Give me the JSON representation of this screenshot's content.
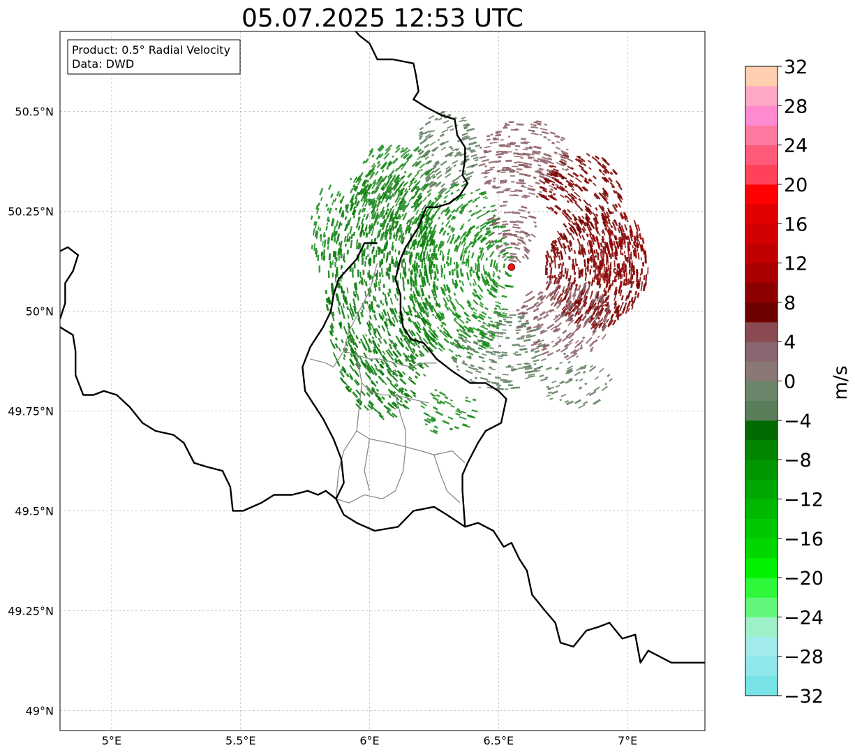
{
  "title": "05.07.2025 12:53 UTC",
  "info_box": {
    "product": "Product: 0.5° Radial Velocity",
    "data_source": "Data: DWD"
  },
  "map": {
    "lon_range": [
      4.8,
      7.3
    ],
    "lat_range": [
      48.95,
      50.7
    ],
    "lon_ticks": [
      {
        "value": 5.0,
        "label": "5°E"
      },
      {
        "value": 5.5,
        "label": "5.5°E"
      },
      {
        "value": 6.0,
        "label": "6°E"
      },
      {
        "value": 6.5,
        "label": "6.5°E"
      },
      {
        "value": 7.0,
        "label": "7°E"
      }
    ],
    "lat_ticks": [
      {
        "value": 49.0,
        "label": "49°N"
      },
      {
        "value": 49.25,
        "label": "49.25°N"
      },
      {
        "value": 49.5,
        "label": "49.5°N"
      },
      {
        "value": 49.75,
        "label": "49.75°N"
      },
      {
        "value": 50.0,
        "label": "50°N"
      },
      {
        "value": 50.25,
        "label": "50.25°N"
      },
      {
        "value": 50.5,
        "label": "50.5°N"
      }
    ],
    "gridlines": true,
    "radar_site": {
      "lon": 6.55,
      "lat": 50.11,
      "color": "#e8141a"
    },
    "borders": {
      "national": [
        [
          [
            5.92,
            50.72
          ],
          [
            5.96,
            50.69
          ],
          [
            6.0,
            50.67
          ],
          [
            6.03,
            50.63
          ],
          [
            6.09,
            50.63
          ],
          [
            6.17,
            50.62
          ],
          [
            6.18,
            50.59
          ],
          [
            6.19,
            50.55
          ],
          [
            6.17,
            50.53
          ],
          [
            6.22,
            50.51
          ],
          [
            6.28,
            50.49
          ],
          [
            6.33,
            50.48
          ],
          [
            6.34,
            50.44
          ],
          [
            6.37,
            50.41
          ],
          [
            6.37,
            50.38
          ],
          [
            6.36,
            50.34
          ],
          [
            6.38,
            50.32
          ],
          [
            6.35,
            50.29
          ],
          [
            6.31,
            50.27
          ],
          [
            6.26,
            50.26
          ],
          [
            6.22,
            50.26
          ],
          [
            6.19,
            50.21
          ],
          [
            6.16,
            50.18
          ],
          [
            6.14,
            50.16
          ],
          [
            6.12,
            50.13
          ],
          [
            6.1,
            50.08
          ],
          [
            6.12,
            50.04
          ],
          [
            6.12,
            50.0
          ],
          [
            6.13,
            49.96
          ],
          [
            6.16,
            49.93
          ],
          [
            6.21,
            49.92
          ],
          [
            6.26,
            49.88
          ],
          [
            6.32,
            49.85
          ],
          [
            6.39,
            49.82
          ],
          [
            6.45,
            49.82
          ],
          [
            6.5,
            49.8
          ],
          [
            6.53,
            49.78
          ],
          [
            6.51,
            49.72
          ],
          [
            6.45,
            49.7
          ],
          [
            6.42,
            49.67
          ],
          [
            6.38,
            49.62
          ],
          [
            6.36,
            49.59
          ],
          [
            6.36,
            49.55
          ],
          [
            6.37,
            49.46
          ]
        ],
        [
          [
            4.8,
            49.96
          ],
          [
            4.85,
            49.94
          ],
          [
            4.86,
            49.9
          ],
          [
            4.86,
            49.84
          ],
          [
            4.89,
            49.79
          ],
          [
            4.93,
            49.79
          ],
          [
            4.97,
            49.8
          ],
          [
            5.02,
            49.79
          ],
          [
            5.07,
            49.76
          ],
          [
            5.12,
            49.72
          ],
          [
            5.17,
            49.7
          ],
          [
            5.24,
            49.69
          ],
          [
            5.28,
            49.67
          ],
          [
            5.32,
            49.62
          ],
          [
            5.37,
            49.61
          ],
          [
            5.43,
            49.6
          ],
          [
            5.46,
            49.56
          ],
          [
            5.47,
            49.5
          ],
          [
            5.51,
            49.5
          ],
          [
            5.58,
            49.52
          ],
          [
            5.63,
            49.54
          ],
          [
            5.7,
            49.54
          ],
          [
            5.76,
            49.55
          ],
          [
            5.8,
            49.54
          ],
          [
            5.83,
            49.55
          ],
          [
            5.87,
            49.53
          ],
          [
            5.9,
            49.49
          ],
          [
            5.95,
            49.47
          ],
          [
            6.02,
            49.45
          ],
          [
            6.11,
            49.46
          ],
          [
            6.17,
            49.5
          ],
          [
            6.25,
            49.51
          ],
          [
            6.3,
            49.49
          ],
          [
            6.37,
            49.46
          ],
          [
            6.42,
            49.47
          ],
          [
            6.48,
            49.45
          ],
          [
            6.52,
            49.41
          ],
          [
            6.55,
            49.42
          ],
          [
            6.58,
            49.38
          ],
          [
            6.61,
            49.35
          ],
          [
            6.63,
            49.29
          ],
          [
            6.68,
            49.25
          ],
          [
            6.72,
            49.22
          ],
          [
            6.74,
            49.17
          ],
          [
            6.79,
            49.16
          ],
          [
            6.84,
            49.2
          ],
          [
            6.89,
            49.21
          ],
          [
            6.93,
            49.22
          ],
          [
            6.98,
            49.18
          ],
          [
            7.03,
            49.19
          ],
          [
            7.05,
            49.12
          ],
          [
            7.08,
            49.15
          ],
          [
            7.11,
            49.14
          ],
          [
            7.17,
            49.12
          ],
          [
            7.23,
            49.12
          ],
          [
            7.3,
            49.12
          ]
        ],
        [
          [
            4.8,
            50.15
          ],
          [
            4.83,
            50.16
          ],
          [
            4.87,
            50.14
          ],
          [
            4.85,
            50.1
          ],
          [
            4.82,
            50.07
          ],
          [
            4.82,
            50.02
          ],
          [
            4.8,
            49.98
          ]
        ]
      ],
      "lux_outer": [
        [
          [
            6.03,
            50.17
          ],
          [
            5.98,
            50.17
          ],
          [
            5.95,
            50.13
          ],
          [
            5.88,
            50.08
          ],
          [
            5.86,
            50.04
          ],
          [
            5.85,
            50.0
          ],
          [
            5.82,
            49.96
          ],
          [
            5.77,
            49.91
          ],
          [
            5.74,
            49.86
          ],
          [
            5.75,
            49.8
          ],
          [
            5.82,
            49.73
          ],
          [
            5.86,
            49.68
          ],
          [
            5.89,
            49.63
          ],
          [
            5.9,
            49.57
          ],
          [
            5.87,
            49.53
          ],
          [
            5.83,
            49.55
          ]
        ]
      ],
      "regional": [
        [
          [
            5.77,
            49.88
          ],
          [
            5.83,
            49.87
          ],
          [
            5.86,
            49.86
          ],
          [
            5.9,
            49.9
          ],
          [
            5.95,
            49.89
          ],
          [
            6.0,
            49.88
          ],
          [
            6.04,
            49.88
          ],
          [
            6.1,
            49.87
          ],
          [
            6.16,
            49.86
          ],
          [
            6.21,
            49.87
          ],
          [
            6.26,
            49.87
          ]
        ],
        [
          [
            5.9,
            49.9
          ],
          [
            5.92,
            49.95
          ],
          [
            5.96,
            50.0
          ],
          [
            6.0,
            50.05
          ],
          [
            6.03,
            50.12
          ]
        ],
        [
          [
            5.95,
            49.89
          ],
          [
            5.97,
            49.82
          ],
          [
            6.0,
            49.8
          ],
          [
            6.05,
            49.79
          ],
          [
            6.1,
            49.79
          ],
          [
            6.16,
            49.78
          ],
          [
            6.23,
            49.77
          ]
        ],
        [
          [
            5.97,
            49.82
          ],
          [
            5.96,
            49.76
          ],
          [
            5.95,
            49.7
          ],
          [
            6.0,
            49.68
          ],
          [
            6.08,
            49.67
          ],
          [
            6.14,
            49.66
          ],
          [
            6.2,
            49.65
          ],
          [
            6.25,
            49.64
          ],
          [
            6.32,
            49.65
          ],
          [
            6.37,
            49.62
          ]
        ],
        [
          [
            6.14,
            49.66
          ],
          [
            6.13,
            49.6
          ],
          [
            6.1,
            49.55
          ],
          [
            6.05,
            49.53
          ],
          [
            5.98,
            49.54
          ],
          [
            5.92,
            49.52
          ],
          [
            5.87,
            49.53
          ]
        ],
        [
          [
            6.0,
            49.68
          ],
          [
            5.98,
            49.6
          ],
          [
            6.0,
            49.55
          ]
        ],
        [
          [
            6.25,
            49.64
          ],
          [
            6.27,
            49.6
          ],
          [
            6.3,
            49.55
          ],
          [
            6.35,
            49.52
          ]
        ],
        [
          [
            5.87,
            49.53
          ],
          [
            5.88,
            49.6
          ],
          [
            5.9,
            49.65
          ],
          [
            5.95,
            49.7
          ]
        ],
        [
          [
            6.1,
            49.79
          ],
          [
            6.12,
            49.74
          ],
          [
            6.14,
            49.7
          ],
          [
            6.14,
            49.66
          ]
        ]
      ]
    },
    "echo_regions": [
      {
        "lon": 6.05,
        "lat": 50.05,
        "r_lon": 0.22,
        "r_lat": 0.32,
        "color": "#0a7a0a",
        "density": 0.55
      },
      {
        "lon": 6.35,
        "lat": 50.1,
        "r_lon": 0.2,
        "r_lat": 0.22,
        "color": "#128a12",
        "density": 0.5
      },
      {
        "lon": 6.1,
        "lat": 50.3,
        "r_lon": 0.18,
        "r_lat": 0.12,
        "color": "#1f8a1f",
        "density": 0.45
      },
      {
        "lon": 6.3,
        "lat": 50.4,
        "r_lon": 0.12,
        "r_lat": 0.1,
        "color": "#5f7e5f",
        "density": 0.45
      },
      {
        "lon": 6.6,
        "lat": 50.38,
        "r_lon": 0.18,
        "r_lat": 0.1,
        "color": "#8a5f66",
        "density": 0.45
      },
      {
        "lon": 6.82,
        "lat": 50.3,
        "r_lon": 0.16,
        "r_lat": 0.1,
        "color": "#7a0000",
        "density": 0.5
      },
      {
        "lon": 6.88,
        "lat": 50.1,
        "r_lon": 0.2,
        "r_lat": 0.14,
        "color": "#7a0000",
        "density": 0.7
      },
      {
        "lon": 6.95,
        "lat": 50.15,
        "r_lon": 0.12,
        "r_lat": 0.1,
        "color": "#900000",
        "density": 0.55
      },
      {
        "lon": 6.75,
        "lat": 49.98,
        "r_lon": 0.18,
        "r_lat": 0.1,
        "color": "#8a5f66",
        "density": 0.45
      },
      {
        "lon": 6.55,
        "lat": 50.2,
        "r_lon": 0.1,
        "r_lat": 0.08,
        "color": "#8a5f66",
        "density": 0.35
      },
      {
        "lon": 6.5,
        "lat": 49.9,
        "r_lon": 0.18,
        "r_lat": 0.1,
        "color": "#5f7e5f",
        "density": 0.35
      },
      {
        "lon": 5.85,
        "lat": 50.2,
        "r_lon": 0.08,
        "r_lat": 0.12,
        "color": "#168a16",
        "density": 0.35
      },
      {
        "lon": 6.3,
        "lat": 49.75,
        "r_lon": 0.12,
        "r_lat": 0.06,
        "color": "#1a8a1a",
        "density": 0.25
      },
      {
        "lon": 6.8,
        "lat": 49.82,
        "r_lon": 0.14,
        "r_lat": 0.06,
        "color": "#5f7e5f",
        "density": 0.25
      }
    ]
  },
  "colorbar": {
    "label": "m/s",
    "min": -32,
    "max": 32,
    "step": 4,
    "tick_labels": [
      "32",
      "28",
      "24",
      "20",
      "16",
      "12",
      "8",
      "4",
      "0",
      "−4",
      "−8",
      "−12",
      "−16",
      "−20",
      "−24",
      "−28",
      "−32"
    ],
    "colors_bottom_to_top": [
      "#77e3e6",
      "#8ee8ec",
      "#a3eaed",
      "#9ef0c8",
      "#62f77a",
      "#2ef83a",
      "#00f000",
      "#00d800",
      "#00c800",
      "#00b800",
      "#00a800",
      "#009600",
      "#008600",
      "#006a00",
      "#5a7e5a",
      "#6b866b",
      "#8a7877",
      "#8a6670",
      "#8a4a52",
      "#6f0000",
      "#8c0000",
      "#a80000",
      "#c00000",
      "#d20000",
      "#e00000",
      "#ff0000",
      "#ff4259",
      "#ff5a7a",
      "#ff7aa0",
      "#ff8ad0",
      "#ffa8c6",
      "#ffcfb0"
    ]
  }
}
